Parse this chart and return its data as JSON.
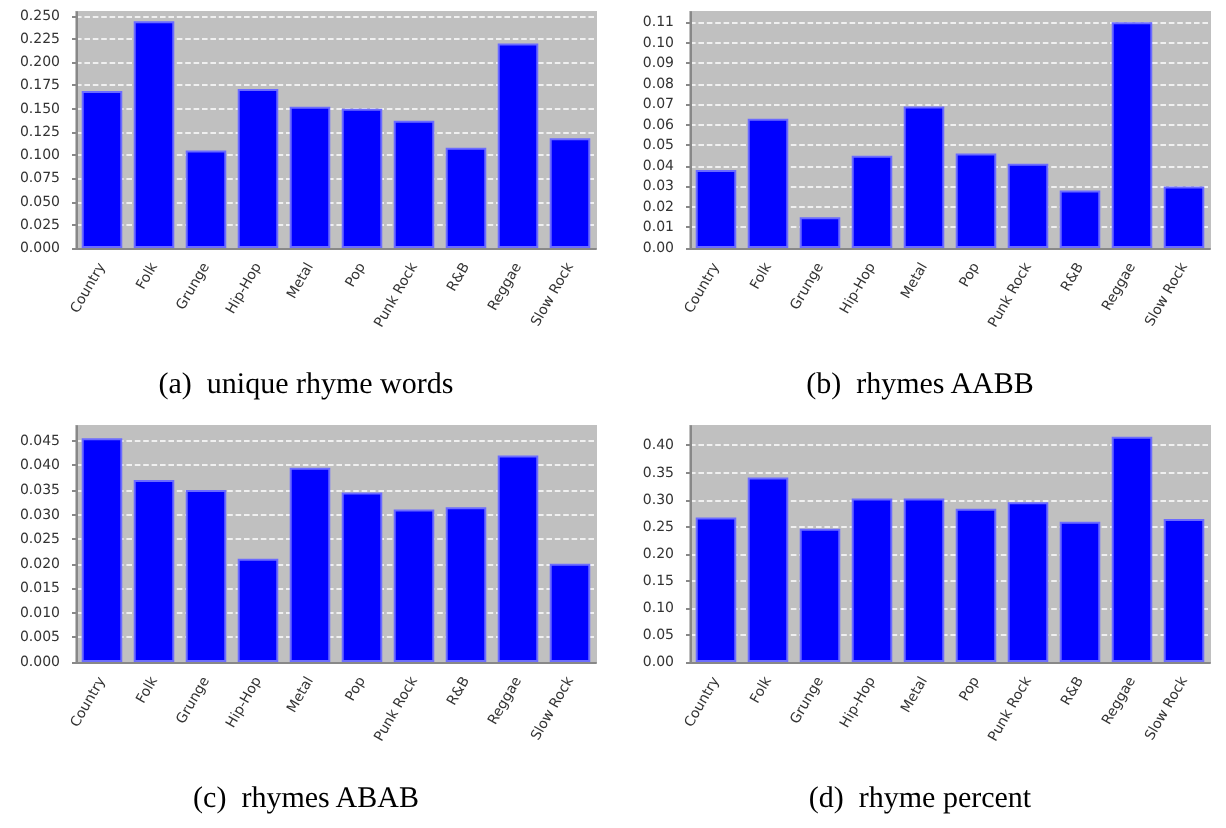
{
  "chart_data": [
    {
      "type": "bar",
      "title": "(a)  unique rhyme words",
      "categories": [
        "Country",
        "Folk",
        "Grunge",
        "Hip-Hop",
        "Metal",
        "Pop",
        "Punk Rock",
        "R&B",
        "Reggae",
        "Slow Rock"
      ],
      "values": [
        0.169,
        0.244,
        0.105,
        0.171,
        0.152,
        0.15,
        0.137,
        0.108,
        0.22,
        0.118
      ],
      "color": "#0000ff",
      "ylim": [
        0,
        0.254
      ],
      "yticks": [
        {
          "value": 0,
          "label": "0.000"
        },
        {
          "value": 0.025,
          "label": "0.025"
        },
        {
          "value": 0.05,
          "label": "0.050"
        },
        {
          "value": 0.075,
          "label": "0.075"
        },
        {
          "value": 0.1,
          "label": "0.100"
        },
        {
          "value": 0.125,
          "label": "0.125"
        },
        {
          "value": 0.15,
          "label": "0.150"
        },
        {
          "value": 0.175,
          "label": "0.175"
        },
        {
          "value": 0.2,
          "label": "0.200"
        },
        {
          "value": 0.225,
          "label": "0.225"
        },
        {
          "value": 0.25,
          "label": "0.250"
        }
      ],
      "grid": "y"
    },
    {
      "type": "bar",
      "title": "(b)  rhymes AABB",
      "categories": [
        "Country",
        "Folk",
        "Grunge",
        "Hip-Hop",
        "Metal",
        "Pop",
        "Punk Rock",
        "R&B",
        "Reggae",
        "Slow Rock"
      ],
      "values": [
        0.038,
        0.063,
        0.015,
        0.045,
        0.069,
        0.046,
        0.041,
        0.028,
        0.11,
        0.03
      ],
      "color": "#0000ff",
      "ylim": [
        0,
        0.115
      ],
      "yticks": [
        {
          "value": 0,
          "label": "0.00"
        },
        {
          "value": 0.01,
          "label": "0.01"
        },
        {
          "value": 0.02,
          "label": "0.02"
        },
        {
          "value": 0.03,
          "label": "0.03"
        },
        {
          "value": 0.04,
          "label": "0.04"
        },
        {
          "value": 0.05,
          "label": "0.05"
        },
        {
          "value": 0.06,
          "label": "0.06"
        },
        {
          "value": 0.07,
          "label": "0.07"
        },
        {
          "value": 0.08,
          "label": "0.08"
        },
        {
          "value": 0.09,
          "label": "0.09"
        },
        {
          "value": 0.1,
          "label": "0.10"
        },
        {
          "value": 0.11,
          "label": "0.11"
        }
      ],
      "grid": "y"
    },
    {
      "type": "bar",
      "title": "(c)  rhymes ABAB",
      "categories": [
        "Country",
        "Folk",
        "Grunge",
        "Hip-Hop",
        "Metal",
        "Pop",
        "Punk Rock",
        "R&B",
        "Reggae",
        "Slow Rock"
      ],
      "values": [
        0.0455,
        0.037,
        0.035,
        0.021,
        0.0395,
        0.0345,
        0.031,
        0.0315,
        0.042,
        0.02
      ],
      "color": "#0000ff",
      "ylim": [
        0,
        0.048
      ],
      "yticks": [
        {
          "value": 0,
          "label": "0.000"
        },
        {
          "value": 0.005,
          "label": "0.005"
        },
        {
          "value": 0.01,
          "label": "0.010"
        },
        {
          "value": 0.015,
          "label": "0.015"
        },
        {
          "value": 0.02,
          "label": "0.020"
        },
        {
          "value": 0.025,
          "label": "0.025"
        },
        {
          "value": 0.03,
          "label": "0.030"
        },
        {
          "value": 0.035,
          "label": "0.035"
        },
        {
          "value": 0.04,
          "label": "0.040"
        },
        {
          "value": 0.045,
          "label": "0.045"
        }
      ],
      "grid": "y"
    },
    {
      "type": "bar",
      "title": "(d)  rhyme percent",
      "categories": [
        "Country",
        "Folk",
        "Grunge",
        "Hip-Hop",
        "Metal",
        "Pop",
        "Punk Rock",
        "R&B",
        "Reggae",
        "Slow Rock"
      ],
      "values": [
        0.267,
        0.341,
        0.246,
        0.302,
        0.302,
        0.283,
        0.295,
        0.259,
        0.416,
        0.264
      ],
      "color": "#0000ff",
      "ylim": [
        0,
        0.436
      ],
      "yticks": [
        {
          "value": 0,
          "label": "0.00"
        },
        {
          "value": 0.05,
          "label": "0.05"
        },
        {
          "value": 0.1,
          "label": "0.10"
        },
        {
          "value": 0.15,
          "label": "0.15"
        },
        {
          "value": 0.2,
          "label": "0.20"
        },
        {
          "value": 0.25,
          "label": "0.25"
        },
        {
          "value": 0.3,
          "label": "0.30"
        },
        {
          "value": 0.35,
          "label": "0.35"
        },
        {
          "value": 0.4,
          "label": "0.40"
        }
      ],
      "grid": "y"
    }
  ]
}
